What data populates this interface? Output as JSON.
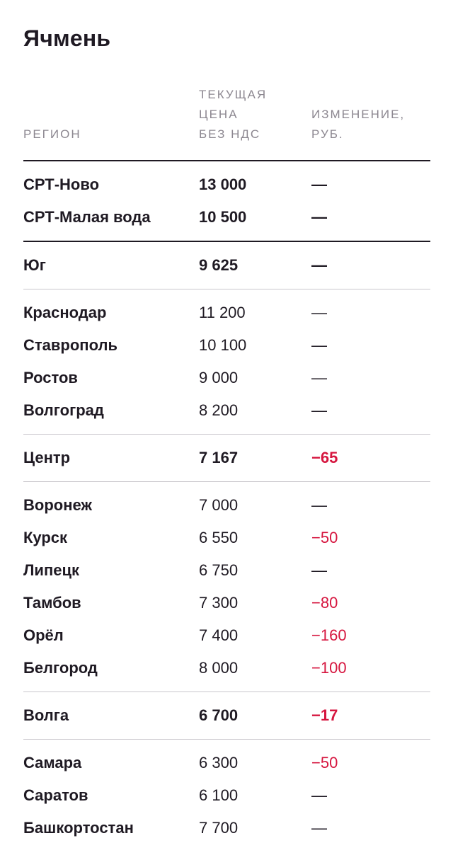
{
  "title": "Ячмень",
  "headers": {
    "region": "РЕГИОН",
    "price": "ТЕКУЩАЯ\nЦЕНА\nБЕЗ НДС",
    "change": "ИЗМЕНЕНИЕ,\nРУБ."
  },
  "colors": {
    "text": "#1f1a23",
    "muted": "#8c8790",
    "negative": "#d6163f",
    "divider": "#c9c6cc"
  },
  "groups": [
    {
      "rows": [
        {
          "region": "СРТ-Ново",
          "price": "13 000",
          "change": "—",
          "bold": true
        },
        {
          "region": "СРТ-Малая вода",
          "price": "10 500",
          "change": "—",
          "bold": true
        }
      ]
    },
    {
      "rows": [
        {
          "region": "Юг",
          "price": "9 625",
          "change": "—",
          "bold": true
        }
      ]
    },
    {
      "rows": [
        {
          "region": "Краснодар",
          "price": "11 200",
          "change": "—"
        },
        {
          "region": "Ставрополь",
          "price": "10 100",
          "change": "—"
        },
        {
          "region": "Ростов",
          "price": "9 000",
          "change": "—"
        },
        {
          "region": "Волгоград",
          "price": "8 200",
          "change": "—"
        }
      ]
    },
    {
      "rows": [
        {
          "region": "Центр",
          "price": "7 167",
          "change": "−65",
          "bold": true
        }
      ]
    },
    {
      "rows": [
        {
          "region": "Воронеж",
          "price": "7 000",
          "change": "—"
        },
        {
          "region": "Курск",
          "price": "6 550",
          "change": "−50"
        },
        {
          "region": "Липецк",
          "price": "6 750",
          "change": "—"
        },
        {
          "region": "Тамбов",
          "price": "7 300",
          "change": "−80"
        },
        {
          "region": "Орёл",
          "price": "7 400",
          "change": "−160"
        },
        {
          "region": "Белгород",
          "price": "8 000",
          "change": "−100"
        }
      ]
    },
    {
      "rows": [
        {
          "region": "Волга",
          "price": "6 700",
          "change": "−17",
          "bold": true
        }
      ]
    },
    {
      "rows": [
        {
          "region": "Самара",
          "price": "6 300",
          "change": "−50"
        },
        {
          "region": "Саратов",
          "price": "6 100",
          "change": "—"
        },
        {
          "region": "Башкортостан",
          "price": "7 700",
          "change": "—"
        }
      ]
    }
  ]
}
